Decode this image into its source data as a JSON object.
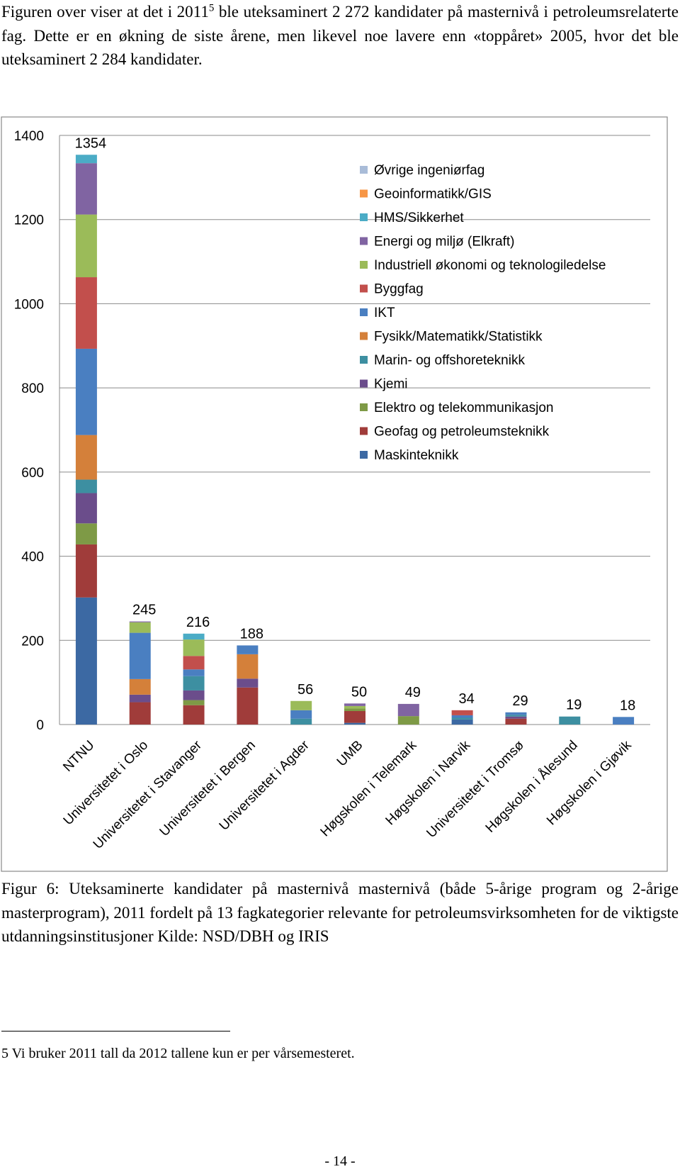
{
  "paragraph": {
    "before": "Figuren over viser at det i 2011",
    "footnote_ref": "5",
    "after": " ble uteksaminert 2 272 kandidater på masternivå i petroleumsrelaterte fag. Dette er en økning de siste årene, men likevel noe lavere enn «toppåret» 2005, hvor det ble uteksaminert 2 284 kandidater."
  },
  "chart_data": {
    "type": "stacked_bar",
    "categories": [
      "NTNU",
      "Universitetet i Oslo",
      "Universitetet i Stavanger",
      "Universitetet i Bergen",
      "Universitetet i Agder",
      "UMB",
      "Høgskolen i Telemark",
      "Høgskolen i Narvik",
      "Universitetet i Tromsø",
      "Høgskolen i Ålesund",
      "Høgskolen i Gjøvik"
    ],
    "series": [
      {
        "name": "Maskinteknikk",
        "color": "#3c69a3",
        "values": [
          302,
          0,
          0,
          0,
          0,
          4,
          0,
          12,
          0,
          0,
          0
        ]
      },
      {
        "name": "Geofag og petroleumsteknikk",
        "color": "#a03c3a",
        "values": [
          126,
          53,
          46,
          88,
          0,
          28,
          0,
          0,
          14,
          0,
          0
        ]
      },
      {
        "name": "Elektro og telekommunikasjon",
        "color": "#7e9a46",
        "values": [
          50,
          0,
          12,
          0,
          0,
          6,
          20,
          0,
          0,
          0,
          0
        ]
      },
      {
        "name": "Kjemi",
        "color": "#6b4d8b",
        "values": [
          72,
          18,
          23,
          21,
          0,
          0,
          0,
          0,
          5,
          0,
          0
        ]
      },
      {
        "name": "Marin- og offshoreteknikk",
        "color": "#3d8fa1",
        "values": [
          32,
          0,
          34,
          0,
          14,
          0,
          0,
          4,
          4,
          19,
          0
        ]
      },
      {
        "name": "Fysikk/Matematikk/Statistikk",
        "color": "#d4803a",
        "values": [
          106,
          37,
          0,
          58,
          0,
          0,
          0,
          0,
          0,
          0,
          0
        ]
      },
      {
        "name": "IKT",
        "color": "#4a7fc1",
        "values": [
          205,
          110,
          16,
          21,
          20,
          0,
          0,
          6,
          6,
          0,
          18
        ]
      },
      {
        "name": "Byggfag",
        "color": "#c24f4c",
        "values": [
          170,
          0,
          32,
          0,
          0,
          0,
          0,
          12,
          0,
          0,
          0
        ]
      },
      {
        "name": "Industriell økonomi og teknologiledelse",
        "color": "#9bbb59",
        "values": [
          149,
          25,
          39,
          0,
          22,
          6,
          0,
          0,
          0,
          0,
          0
        ]
      },
      {
        "name": "Energi og miljø (Elkraft)",
        "color": "#8064a2",
        "values": [
          122,
          2,
          0,
          0,
          0,
          6,
          29,
          0,
          0,
          0,
          0
        ]
      },
      {
        "name": "HMS/Sikkerhet",
        "color": "#4bacc6",
        "values": [
          20,
          0,
          14,
          0,
          0,
          0,
          0,
          0,
          0,
          0,
          0
        ]
      },
      {
        "name": "Geoinformatikk/GIS",
        "color": "#f79646",
        "values": [
          0,
          0,
          0,
          0,
          0,
          0,
          0,
          0,
          0,
          0,
          0
        ]
      },
      {
        "name": "Øvrige ingeniørfag",
        "color": "#a9bcd8",
        "values": [
          0,
          0,
          0,
          0,
          0,
          0,
          0,
          0,
          0,
          0,
          0
        ]
      }
    ],
    "totals": [
      1354,
      245,
      216,
      188,
      56,
      50,
      49,
      34,
      29,
      19,
      18
    ],
    "ylim": [
      0,
      1400
    ],
    "yticks": [
      0,
      200,
      400,
      600,
      800,
      1000,
      1200,
      1400
    ],
    "grid": true
  },
  "caption": "Figur 6: Uteksaminerte kandidater på masternivå masternivå (både 5-årige program og 2-årige masterprogram), 2011 fordelt på 13 fagkategorier relevante for petroleumsvirksomheten for de viktigste utdanningsinstitusjoner Kilde: NSD/DBH og IRIS",
  "footnote": "5 Vi bruker 2011 tall da 2012 tallene kun er per vårsemesteret.",
  "page_number": "- 14 -"
}
